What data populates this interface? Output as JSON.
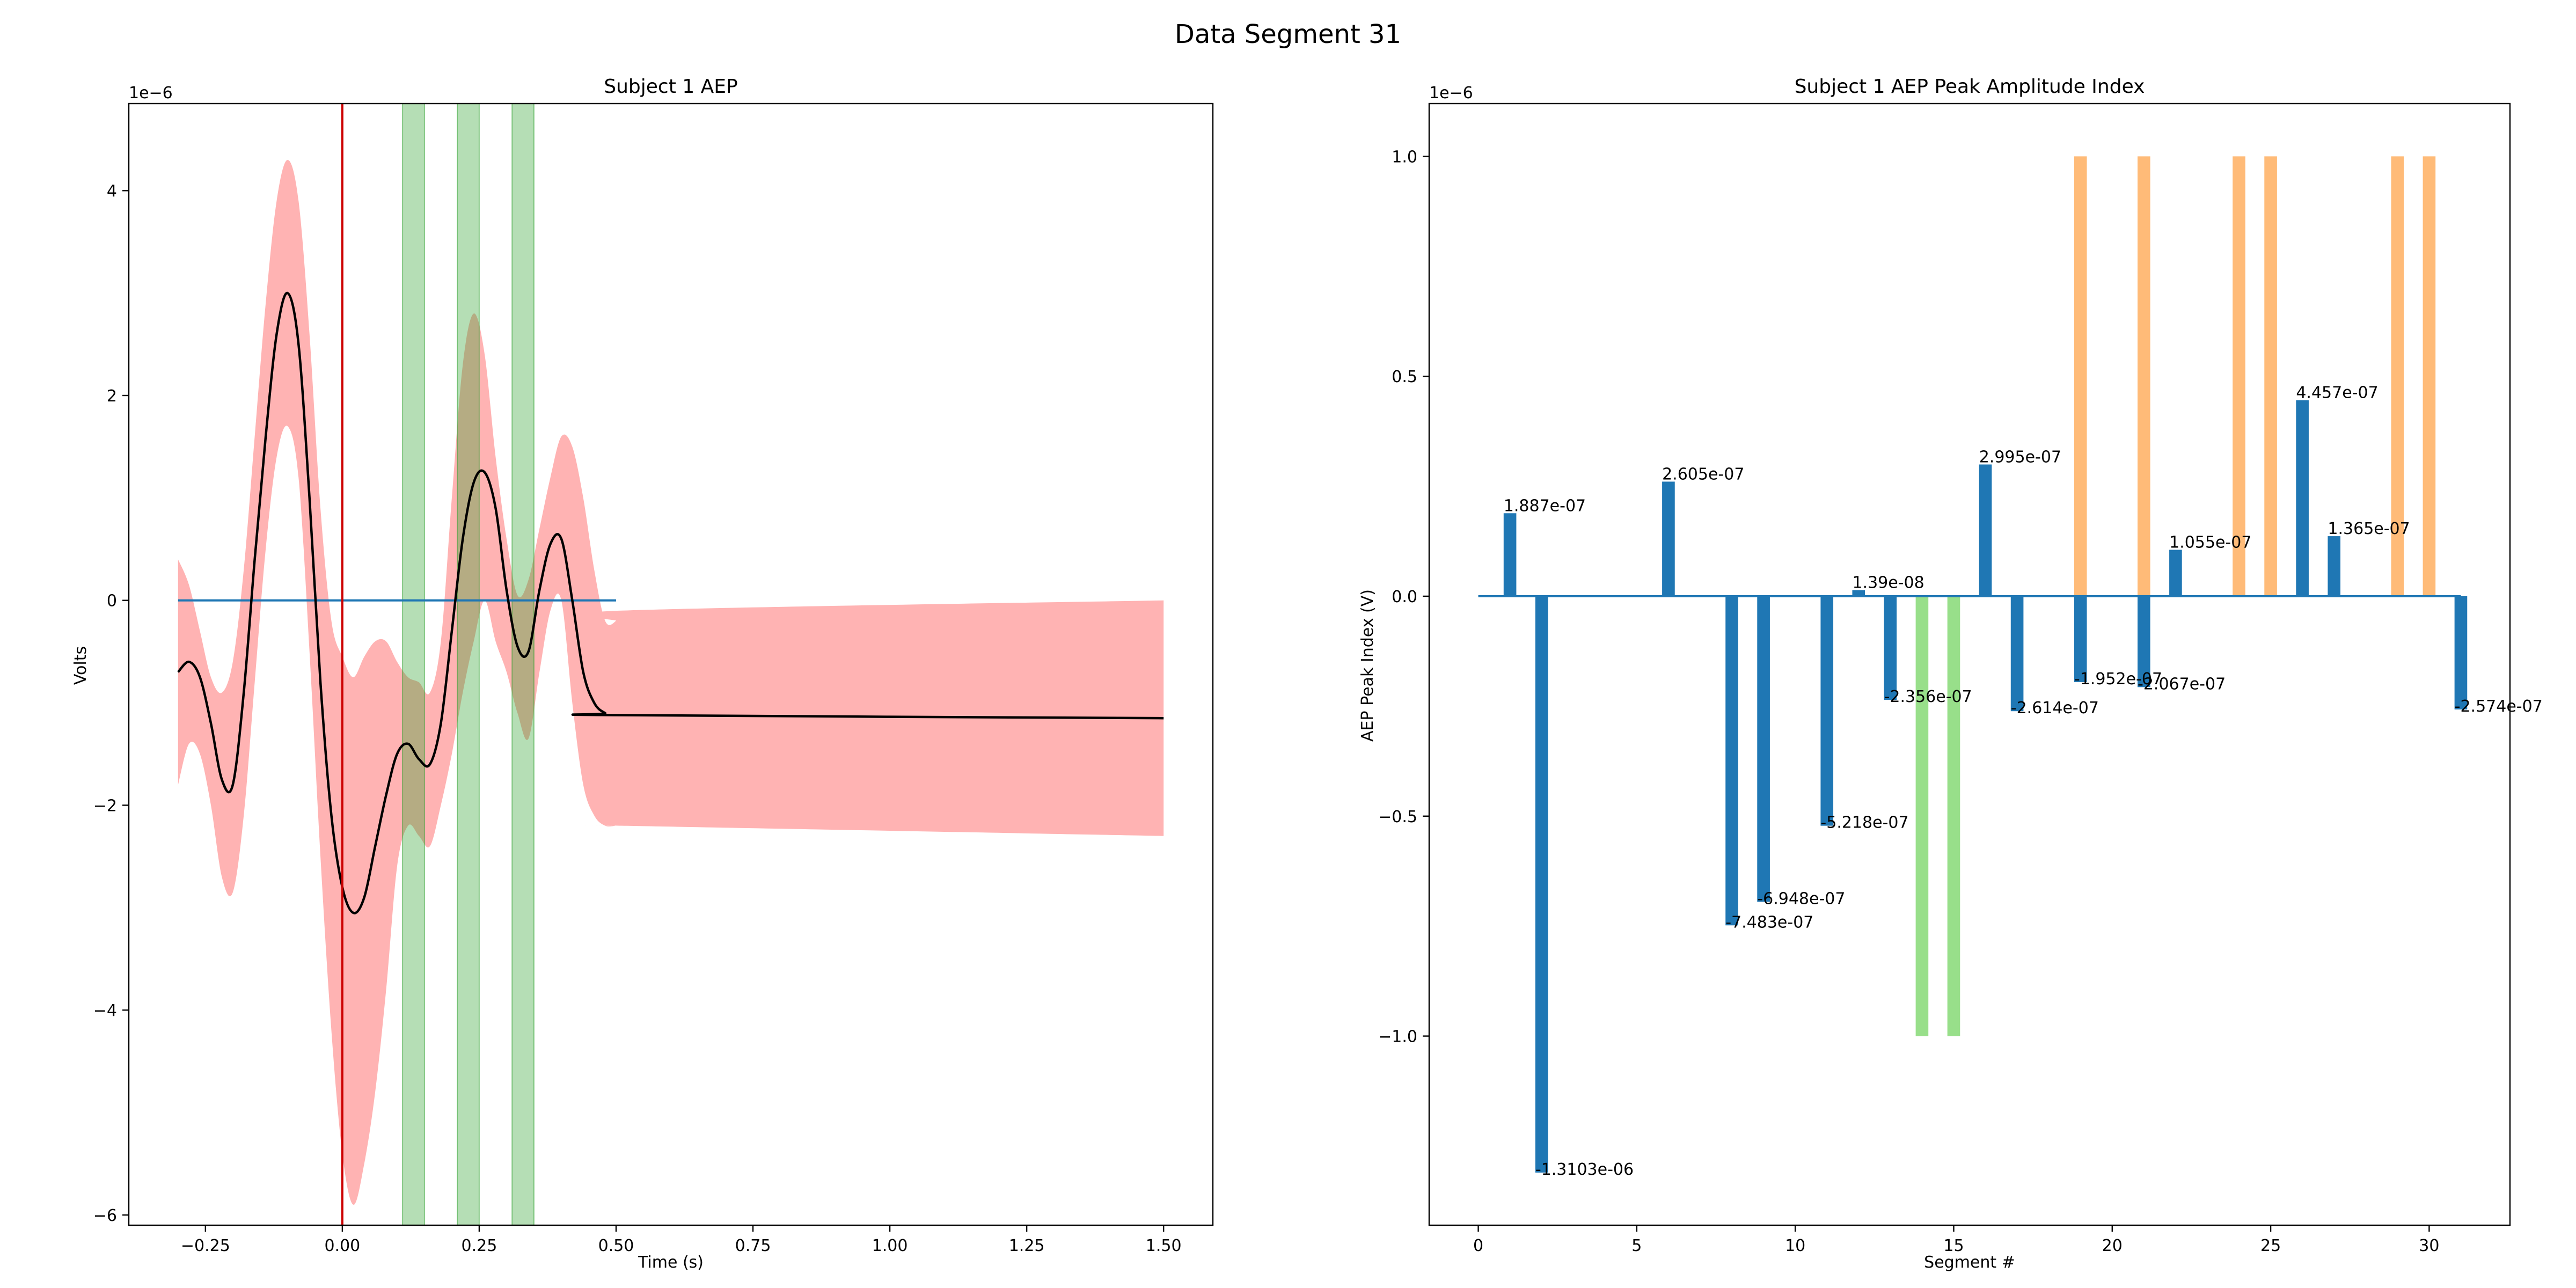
{
  "suptitle": "Data Segment 31",
  "chart_data": [
    {
      "type": "line",
      "title": "Subject 1 AEP",
      "xlabel": "Time (s)",
      "ylabel": "Volts",
      "offset_text": "1e−6",
      "xlim": [
        -0.39,
        1.59
      ],
      "ylim": [
        -6.1,
        4.85
      ],
      "xticks": [
        -0.25,
        0.0,
        0.25,
        0.5,
        0.75,
        1.0,
        1.25,
        1.5
      ],
      "xtick_labels": [
        "−0.25",
        "0.00",
        "0.25",
        "0.50",
        "0.75",
        "1.00",
        "1.25",
        "1.50"
      ],
      "yticks": [
        -6,
        -4,
        -2,
        0,
        2,
        4
      ],
      "ytick_labels": [
        "−6",
        "−4",
        "−2",
        "0",
        "2",
        "4"
      ],
      "mean_curve": {
        "color": "#000000",
        "x": [
          -0.3,
          -0.28,
          -0.26,
          -0.24,
          -0.22,
          -0.2,
          -0.18,
          -0.16,
          -0.14,
          -0.12,
          -0.1,
          -0.08,
          -0.06,
          -0.04,
          -0.02,
          0.0,
          0.02,
          0.04,
          0.06,
          0.08,
          0.1,
          0.12,
          0.14,
          0.16,
          0.18,
          0.2,
          0.22,
          0.24,
          0.26,
          0.28,
          0.3,
          0.32,
          0.34,
          0.36,
          0.38,
          0.4,
          0.42,
          0.44,
          0.46,
          0.48,
          0.5,
          1.5
        ],
        "y": [
          -0.7,
          -0.6,
          -0.75,
          -1.2,
          -1.75,
          -1.8,
          -0.9,
          0.4,
          1.6,
          2.6,
          3.0,
          2.5,
          1.0,
          -0.8,
          -2.1,
          -2.8,
          -3.05,
          -2.9,
          -2.4,
          -1.9,
          -1.5,
          -1.4,
          -1.55,
          -1.6,
          -1.2,
          -0.3,
          0.6,
          1.15,
          1.25,
          0.9,
          0.1,
          -0.45,
          -0.5,
          0.1,
          0.55,
          0.6,
          0.0,
          -0.7,
          -1.0,
          -1.1,
          -1.12,
          -1.15
        ]
      },
      "confidence_band": {
        "color": "#ffb3b3",
        "x": [
          -0.3,
          -0.28,
          -0.26,
          -0.24,
          -0.22,
          -0.2,
          -0.18,
          -0.16,
          -0.14,
          -0.12,
          -0.1,
          -0.08,
          -0.06,
          -0.04,
          -0.02,
          0.0,
          0.02,
          0.04,
          0.06,
          0.08,
          0.1,
          0.12,
          0.14,
          0.16,
          0.18,
          0.2,
          0.22,
          0.24,
          0.26,
          0.28,
          0.3,
          0.32,
          0.34,
          0.36,
          0.38,
          0.4,
          0.42,
          0.44,
          0.46,
          0.48,
          0.5,
          0.51,
          1.5
        ],
        "upper": [
          0.4,
          0.15,
          -0.3,
          -0.75,
          -0.9,
          -0.6,
          0.3,
          1.6,
          2.9,
          3.9,
          4.3,
          3.9,
          2.6,
          0.9,
          -0.2,
          -0.55,
          -0.75,
          -0.55,
          -0.4,
          -0.4,
          -0.6,
          -0.75,
          -0.8,
          -0.9,
          -0.4,
          1.0,
          2.3,
          2.8,
          2.4,
          1.4,
          0.6,
          0.05,
          0.2,
          0.7,
          1.2,
          1.6,
          1.5,
          1.0,
          0.3,
          -0.2,
          -0.2,
          -0.1,
          0.0
        ],
        "lower": [
          -1.8,
          -1.4,
          -1.5,
          -2.0,
          -2.7,
          -2.85,
          -2.1,
          -0.8,
          0.5,
          1.4,
          1.7,
          1.2,
          -0.5,
          -2.5,
          -4.2,
          -5.4,
          -5.9,
          -5.5,
          -4.8,
          -3.8,
          -2.6,
          -2.2,
          -2.3,
          -2.4,
          -2.0,
          -1.5,
          -0.9,
          -0.4,
          0.0,
          -0.4,
          -0.7,
          -1.1,
          -1.35,
          -0.7,
          -0.1,
          0.0,
          -1.0,
          -1.8,
          -2.1,
          -2.2,
          -2.2,
          -2.2,
          -2.3
        ]
      },
      "baseline": {
        "color": "#1f77b4",
        "x": [
          -0.3,
          0.5
        ],
        "y": [
          0,
          0
        ]
      },
      "event_line": {
        "color": "#cc0000",
        "x": 0.0
      },
      "shaded_windows": {
        "color": "#2ca02c",
        "ranges": [
          [
            0.11,
            0.15
          ],
          [
            0.21,
            0.25
          ],
          [
            0.31,
            0.35
          ]
        ]
      }
    },
    {
      "type": "bar",
      "title": "Subject 1 AEP Peak Amplitude Index",
      "xlabel": "Segment #",
      "ylabel": "AEP Peak Index (V)",
      "offset_text": "1e−6",
      "xlim": [
        -1.55,
        32.55
      ],
      "ylim": [
        -1.43,
        1.12
      ],
      "xticks": [
        0,
        5,
        10,
        15,
        20,
        25,
        30
      ],
      "xtick_labels": [
        "0",
        "5",
        "10",
        "15",
        "20",
        "25",
        "30"
      ],
      "yticks": [
        -1.0,
        -0.5,
        0.0,
        0.5,
        1.0
      ],
      "ytick_labels": [
        "−1.0",
        "−0.5",
        "0.0",
        "0.5",
        "1.0"
      ],
      "baseline": {
        "color": "#1f77b4",
        "x": [
          0,
          31
        ],
        "y": [
          0,
          0
        ]
      },
      "colors": {
        "data": "#1f77b4",
        "orange": "#ffbb78",
        "green": "#98df8a"
      },
      "bars": [
        {
          "x": 1,
          "value": 0.1887,
          "label": "1.887e-07"
        },
        {
          "x": 2,
          "value": -1.3103,
          "label": "-1.3103e-06"
        },
        {
          "x": 6,
          "value": 0.2605,
          "label": "2.605e-07"
        },
        {
          "x": 8,
          "value": -0.7483,
          "label": "-7.483e-07"
        },
        {
          "x": 9,
          "value": -0.6948,
          "label": "-6.948e-07"
        },
        {
          "x": 11,
          "value": -0.5218,
          "label": "-5.218e-07"
        },
        {
          "x": 12,
          "value": 0.0139,
          "label": "1.39e-08"
        },
        {
          "x": 13,
          "value": -0.2356,
          "label": "-2.356e-07"
        },
        {
          "x": 16,
          "value": 0.2995,
          "label": "2.995e-07"
        },
        {
          "x": 17,
          "value": -0.2614,
          "label": "-2.614e-07"
        },
        {
          "x": 19,
          "value": -0.1952,
          "label": "-1.952e-07"
        },
        {
          "x": 21,
          "value": -0.2067,
          "label": "-2.067e-07"
        },
        {
          "x": 22,
          "value": 0.1055,
          "label": "1.055e-07"
        },
        {
          "x": 26,
          "value": 0.4457,
          "label": "4.457e-07"
        },
        {
          "x": 27,
          "value": 0.1365,
          "label": "1.365e-07"
        },
        {
          "x": 31,
          "value": -0.2574,
          "label": "-2.574e-07"
        }
      ],
      "marker_bars": [
        {
          "x": 14,
          "value": -1.0,
          "color": "green"
        },
        {
          "x": 15,
          "value": -1.0,
          "color": "green"
        },
        {
          "x": 19,
          "value": 1.0,
          "color": "orange"
        },
        {
          "x": 21,
          "value": 1.0,
          "color": "orange"
        },
        {
          "x": 24,
          "value": 1.0,
          "color": "orange"
        },
        {
          "x": 25,
          "value": 1.0,
          "color": "orange"
        },
        {
          "x": 29,
          "value": 1.0,
          "color": "orange"
        },
        {
          "x": 30,
          "value": 1.0,
          "color": "orange"
        }
      ]
    }
  ]
}
